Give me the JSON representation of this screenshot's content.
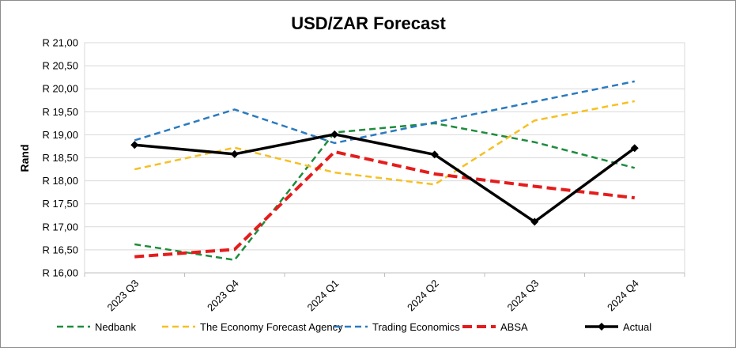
{
  "chart_data": {
    "type": "line",
    "title": "USD/ZAR Forecast",
    "ylabel": "Rand",
    "xlabel": "",
    "categories": [
      "2023 Q3",
      "2023 Q4",
      "2024 Q1",
      "2024 Q2",
      "2024 Q3",
      "2024 Q4"
    ],
    "ylim": [
      16.0,
      21.0
    ],
    "yticks": [
      "R 16,00",
      "R 16,50",
      "R 17,00",
      "R 17,50",
      "R 18,00",
      "R 18,50",
      "R 19,00",
      "R 19,50",
      "R 20,00",
      "R 20,50",
      "R 21,00"
    ],
    "ytick_values": [
      16.0,
      16.5,
      17.0,
      17.5,
      18.0,
      18.5,
      19.0,
      19.5,
      20.0,
      20.5,
      21.0
    ],
    "grid": true,
    "legend_position": "bottom",
    "series": [
      {
        "name": "Nedbank",
        "color": "#1e8c3c",
        "style": "dashed",
        "values": [
          16.62,
          16.28,
          19.05,
          19.25,
          18.84,
          18.28
        ]
      },
      {
        "name": "The Economy Forecast Agency",
        "color": "#f5c022",
        "style": "dashed",
        "values": [
          18.25,
          18.72,
          18.18,
          17.92,
          19.31,
          19.73
        ]
      },
      {
        "name": "Trading Economics",
        "color": "#2b7bbf",
        "style": "dashed",
        "values": [
          18.88,
          19.55,
          18.82,
          19.27,
          19.72,
          20.16
        ]
      },
      {
        "name": "ABSA",
        "color": "#e51c1c",
        "style": "dashed-thick",
        "values": [
          16.35,
          16.51,
          18.63,
          18.15,
          17.88,
          17.63
        ]
      },
      {
        "name": "Actual",
        "color": "#000000",
        "style": "solid-markers",
        "values": [
          18.78,
          18.58,
          19.01,
          18.57,
          17.11,
          18.71
        ]
      }
    ]
  }
}
